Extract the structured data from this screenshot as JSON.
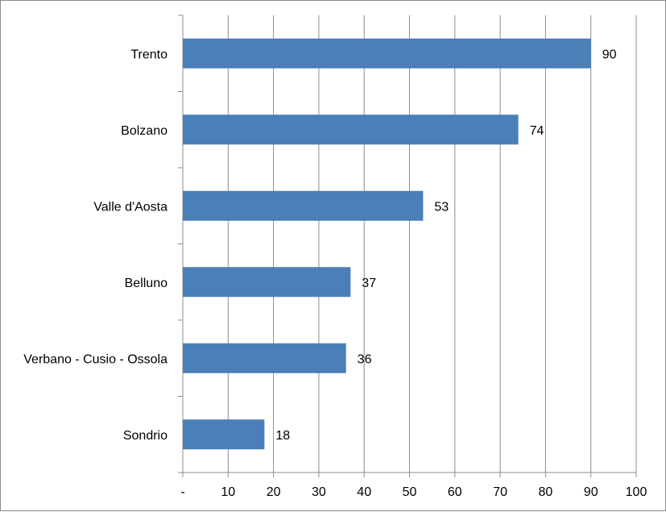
{
  "chart_data": {
    "type": "bar",
    "orientation": "horizontal",
    "categories": [
      "Trento",
      "Bolzano",
      "Valle d'Aosta",
      "Belluno",
      "Verbano - Cusio - Ossola",
      "Sondrio"
    ],
    "values": [
      90,
      74,
      53,
      37,
      36,
      18
    ],
    "xlim": [
      0,
      100
    ],
    "x_ticks": [
      0,
      10,
      20,
      30,
      40,
      50,
      60,
      70,
      80,
      90,
      100
    ],
    "x_tick_labels": [
      "-",
      "10",
      "20",
      "30",
      "40",
      "50",
      "60",
      "70",
      "80",
      "90",
      "100"
    ],
    "grid": "vertical",
    "data_labels": true,
    "bar_color": "#4a7fb8",
    "grid_color": "#8c8c8c"
  }
}
